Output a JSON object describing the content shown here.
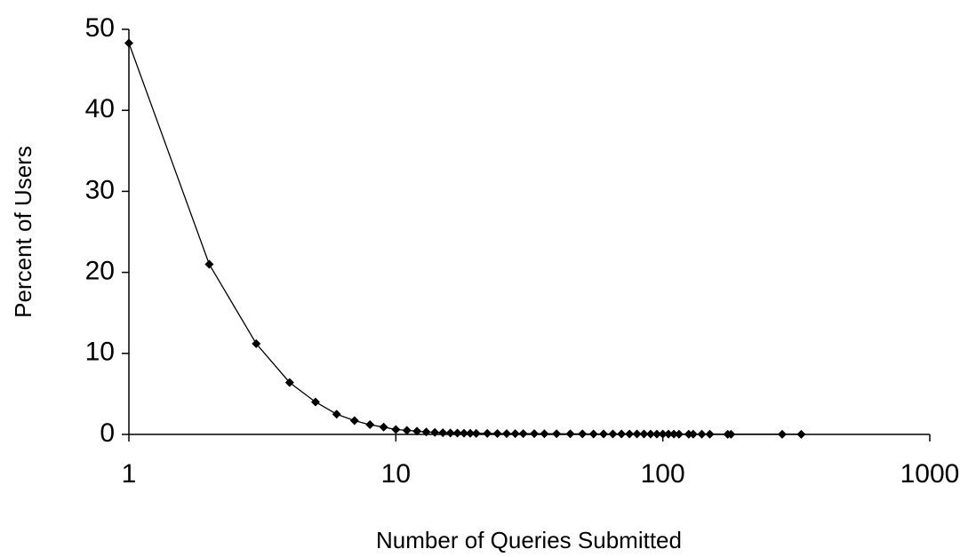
{
  "chart_data": {
    "type": "line",
    "x_label": "Number of Queries Submitted",
    "y_label": "Percent of Users",
    "x": [
      1,
      2,
      3,
      4,
      5,
      6,
      7,
      8,
      9,
      10,
      11,
      12,
      13,
      14,
      15,
      16,
      17,
      18,
      19,
      20,
      22,
      24,
      26,
      28,
      30,
      33,
      36,
      40,
      45,
      50,
      55,
      60,
      65,
      70,
      75,
      80,
      85,
      90,
      95,
      100,
      105,
      110,
      115,
      125,
      130,
      140,
      150,
      175,
      180,
      280,
      330
    ],
    "series": [
      {
        "name": "Percent of Users",
        "color": "#000000",
        "values": [
          48.3,
          21,
          11.2,
          6.4,
          4.0,
          2.5,
          1.7,
          1.2,
          0.9,
          0.6,
          0.5,
          0.4,
          0.3,
          0.25,
          0.2,
          0.18,
          0.16,
          0.15,
          0.14,
          0.13,
          0.12,
          0.11,
          0.1,
          0.1,
          0.09,
          0.09,
          0.08,
          0.08,
          0.07,
          0.07,
          0.06,
          0.06,
          0.06,
          0.05,
          0.05,
          0.05,
          0.05,
          0.04,
          0.04,
          0.04,
          0.04,
          0.04,
          0.03,
          0.03,
          0.03,
          0.03,
          0.03,
          0.02,
          0.02,
          0.02,
          0.02
        ]
      }
    ],
    "xscale": "log",
    "xlim": [
      1,
      1000
    ],
    "xticks": [
      1,
      10,
      100,
      1000
    ],
    "ylim": [
      0,
      50
    ],
    "yticks": [
      0,
      10,
      20,
      30,
      40,
      50
    ],
    "grid": false
  }
}
